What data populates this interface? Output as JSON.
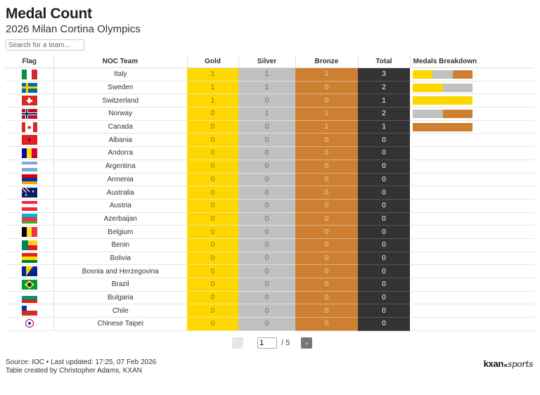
{
  "header": {
    "title": "Medal Count",
    "subtitle": "2026 Milan Cortina Olympics"
  },
  "search": {
    "placeholder": "Search for a team...",
    "value": ""
  },
  "table": {
    "columns": [
      "Flag",
      "NOC Team",
      "Gold",
      "Silver",
      "Bronze",
      "Total",
      "Medals Breakdown"
    ],
    "rows": [
      {
        "team": "Italy",
        "flag": "it",
        "gold": "1",
        "silver": "1",
        "bronze": "1",
        "total": "3"
      },
      {
        "team": "Sweden",
        "flag": "se",
        "gold": "1",
        "silver": "1",
        "bronze": "0",
        "total": "2"
      },
      {
        "team": "Switzerland",
        "flag": "ch",
        "gold": "1",
        "silver": "0",
        "bronze": "0",
        "total": "1"
      },
      {
        "team": "Norway",
        "flag": "no",
        "gold": "0",
        "silver": "1",
        "bronze": "1",
        "total": "2"
      },
      {
        "team": "Canada",
        "flag": "ca",
        "gold": "0",
        "silver": "0",
        "bronze": "1",
        "total": "1"
      },
      {
        "team": "Albania",
        "flag": "al",
        "gold": "0",
        "silver": "0",
        "bronze": "0",
        "total": "0"
      },
      {
        "team": "Andorra",
        "flag": "ad",
        "gold": "0",
        "silver": "0",
        "bronze": "0",
        "total": "0"
      },
      {
        "team": "Argentina",
        "flag": "ar",
        "gold": "0",
        "silver": "0",
        "bronze": "0",
        "total": "0"
      },
      {
        "team": "Armenia",
        "flag": "am",
        "gold": "0",
        "silver": "0",
        "bronze": "0",
        "total": "0"
      },
      {
        "team": "Australia",
        "flag": "au",
        "gold": "0",
        "silver": "0",
        "bronze": "0",
        "total": "0"
      },
      {
        "team": "Austria",
        "flag": "at",
        "gold": "0",
        "silver": "0",
        "bronze": "0",
        "total": "0"
      },
      {
        "team": "Azerbaijan",
        "flag": "az",
        "gold": "0",
        "silver": "0",
        "bronze": "0",
        "total": "0"
      },
      {
        "team": "Belgium",
        "flag": "be",
        "gold": "0",
        "silver": "0",
        "bronze": "0",
        "total": "0"
      },
      {
        "team": "Benin",
        "flag": "bj",
        "gold": "0",
        "silver": "0",
        "bronze": "0",
        "total": "0"
      },
      {
        "team": "Bolivia",
        "flag": "bo",
        "gold": "0",
        "silver": "0",
        "bronze": "0",
        "total": "0"
      },
      {
        "team": "Bosnia and Herzegovina",
        "flag": "ba",
        "gold": "0",
        "silver": "0",
        "bronze": "0",
        "total": "0"
      },
      {
        "team": "Brazil",
        "flag": "br",
        "gold": "0",
        "silver": "0",
        "bronze": "0",
        "total": "0"
      },
      {
        "team": "Bulgaria",
        "flag": "bg",
        "gold": "0",
        "silver": "0",
        "bronze": "0",
        "total": "0"
      },
      {
        "team": "Chile",
        "flag": "cl",
        "gold": "0",
        "silver": "0",
        "bronze": "0",
        "total": "0"
      },
      {
        "team": "Chinese Taipei",
        "flag": "tpe",
        "gold": "0",
        "silver": "0",
        "bronze": "0",
        "total": "0"
      }
    ]
  },
  "colors": {
    "gold": "#FFD700",
    "silver": "#C0C0C0",
    "bronze": "#CD7F32",
    "total": "#333333"
  },
  "pagination": {
    "current": "1",
    "total_label": "/ 5",
    "prev_icon": "‹",
    "next_icon": "›"
  },
  "footer": {
    "source": "Source: IOC • Last updated: 17:25, 07 Feb 2026",
    "credit": "Table created by Christopher Adams, KXAN"
  },
  "logo": {
    "brand": "kxan",
    "suffix": "sports"
  }
}
